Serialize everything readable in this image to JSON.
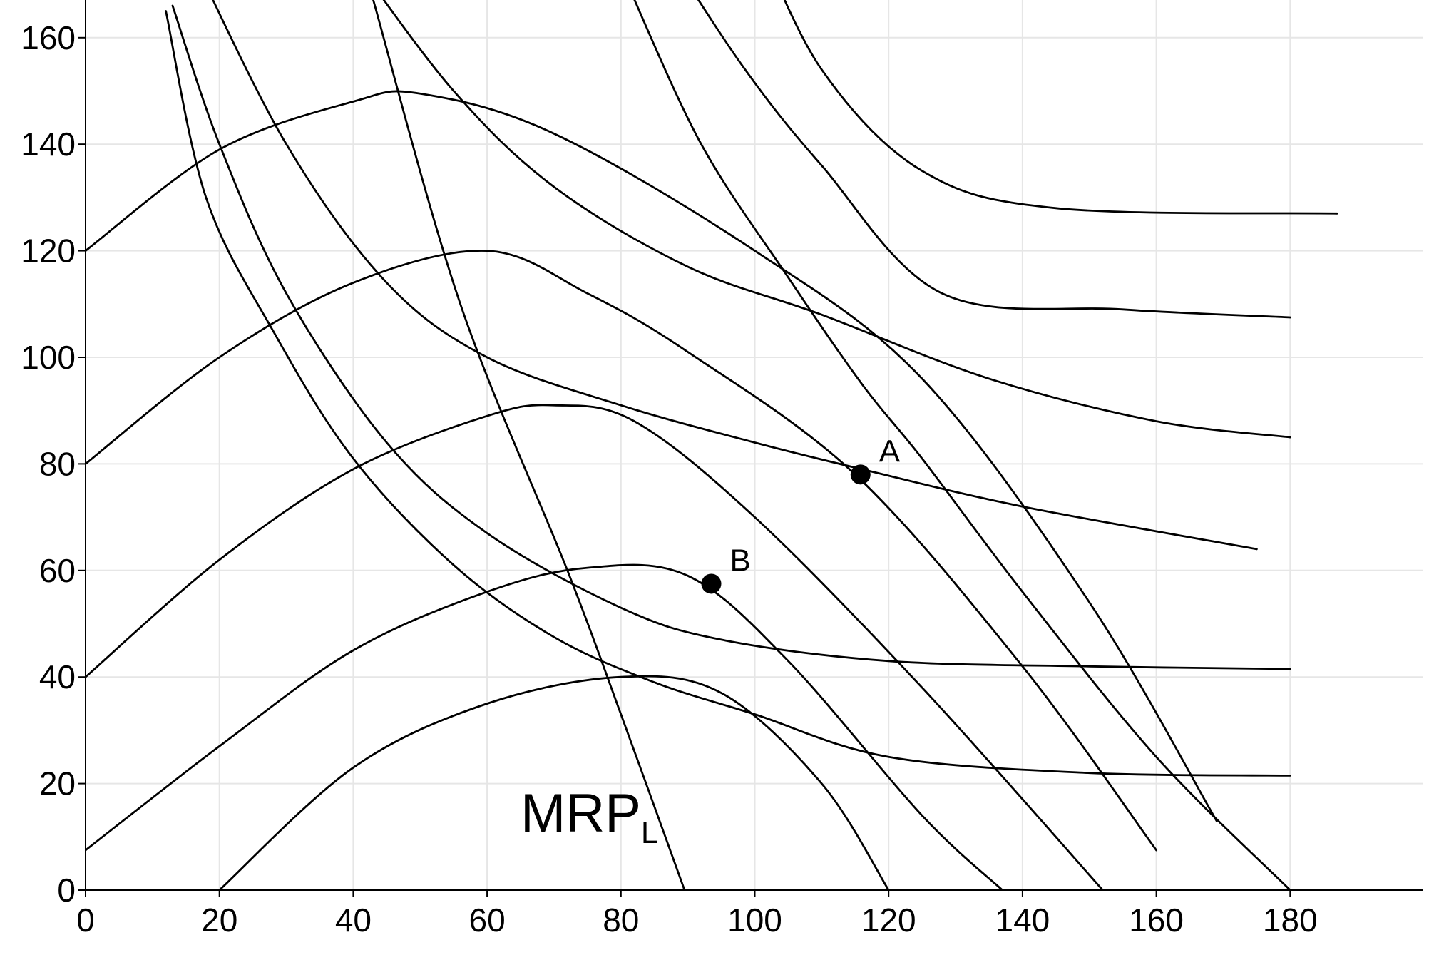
{
  "chart_data": {
    "type": "line",
    "title": "",
    "xlabel": "",
    "ylabel": "",
    "xlim": [
      0,
      200
    ],
    "ylim": [
      0,
      167
    ],
    "grid": true,
    "x_ticks": [
      0,
      20,
      40,
      60,
      80,
      100,
      120,
      140,
      160,
      180
    ],
    "y_ticks": [
      0,
      20,
      40,
      60,
      80,
      100,
      120,
      140,
      160
    ],
    "colors": {
      "curves": "#000000",
      "grid": "#e6e6e6",
      "background": "#ffffff"
    },
    "annotation": {
      "text": "MRP",
      "subscript": "L",
      "x": 65,
      "y": 11
    },
    "mrp_line": {
      "points": [
        [
          80,
          33
        ],
        [
          89.5,
          0
        ],
        [
          72,
          60
        ],
        [
          56,
          110
        ],
        [
          43,
          167
        ]
      ]
    },
    "series": [
      {
        "points": [
          [
            20,
            0
          ],
          [
            40,
            23
          ],
          [
            60,
            35
          ],
          [
            80,
            40
          ],
          [
            95,
            37
          ],
          [
            110,
            20
          ],
          [
            120,
            0
          ]
        ]
      },
      {
        "points": [
          [
            0,
            7.5
          ],
          [
            20,
            27
          ],
          [
            40,
            45
          ],
          [
            60,
            56
          ],
          [
            75,
            60.5
          ],
          [
            90,
            59
          ],
          [
            105,
            43
          ],
          [
            125,
            14
          ],
          [
            137,
            0
          ]
        ]
      },
      {
        "points": [
          [
            0,
            40
          ],
          [
            20,
            62
          ],
          [
            40,
            79
          ],
          [
            60,
            89
          ],
          [
            70,
            91
          ],
          [
            82,
            88
          ],
          [
            100,
            70
          ],
          [
            125,
            38
          ],
          [
            152,
            0
          ]
        ]
      },
      {
        "points": [
          [
            0,
            80
          ],
          [
            20,
            100
          ],
          [
            40,
            114
          ],
          [
            60,
            120
          ],
          [
            75,
            112
          ],
          [
            90,
            101
          ],
          [
            115,
            78
          ],
          [
            140,
            42
          ],
          [
            160,
            7.5
          ]
        ]
      },
      {
        "points": [
          [
            0,
            120
          ],
          [
            20,
            139
          ],
          [
            40,
            148
          ],
          [
            50,
            149.5
          ],
          [
            70,
            142
          ],
          [
            100,
            120
          ],
          [
            125,
            96
          ],
          [
            150,
            54
          ],
          [
            169,
            13
          ]
        ]
      },
      {
        "points": [
          [
            100,
            180
          ],
          [
            110,
            154
          ],
          [
            125,
            135
          ],
          [
            145,
            128
          ],
          [
            187,
            127
          ]
        ]
      },
      {
        "points": [
          [
            85,
            180
          ],
          [
            98,
            155
          ],
          [
            110,
            136
          ],
          [
            128,
            112
          ],
          [
            155,
            109
          ],
          [
            180,
            107.5
          ]
        ]
      },
      {
        "points": [
          [
            40,
            175
          ],
          [
            55,
            150
          ],
          [
            70,
            132
          ],
          [
            90,
            117
          ],
          [
            110,
            108
          ],
          [
            135,
            96
          ],
          [
            160,
            88
          ],
          [
            180,
            85
          ]
        ]
      },
      {
        "points": [
          [
            16,
            175
          ],
          [
            30,
            140
          ],
          [
            45,
            114
          ],
          [
            60,
            100
          ],
          [
            80,
            91
          ],
          [
            100,
            84
          ],
          [
            116,
            79
          ],
          [
            140,
            72
          ],
          [
            175,
            64
          ]
        ]
      },
      {
        "points": [
          [
            13,
            166
          ],
          [
            20,
            140
          ],
          [
            30,
            112
          ],
          [
            45,
            84
          ],
          [
            60,
            67
          ],
          [
            80,
            53
          ],
          [
            95,
            47
          ],
          [
            120,
            43
          ],
          [
            150,
            42
          ],
          [
            180,
            41.5
          ]
        ]
      },
      {
        "points": [
          [
            12,
            165
          ],
          [
            18,
            130
          ],
          [
            28,
            105
          ],
          [
            40,
            81
          ],
          [
            55,
            61
          ],
          [
            70,
            47.5
          ],
          [
            85,
            39
          ],
          [
            100,
            33
          ],
          [
            120,
            25
          ],
          [
            150,
            22
          ],
          [
            180,
            21.5
          ]
        ]
      },
      {
        "points": [
          [
            81,
            170
          ],
          [
            92,
            140
          ],
          [
            105,
            115
          ],
          [
            116,
            95
          ],
          [
            125,
            81
          ],
          [
            140,
            56
          ],
          [
            160,
            25
          ],
          [
            180,
            0
          ]
        ]
      }
    ],
    "points": [
      {
        "label": "A",
        "x": 115.8,
        "y": 78
      },
      {
        "label": "B",
        "x": 93.5,
        "y": 57.5
      }
    ]
  }
}
